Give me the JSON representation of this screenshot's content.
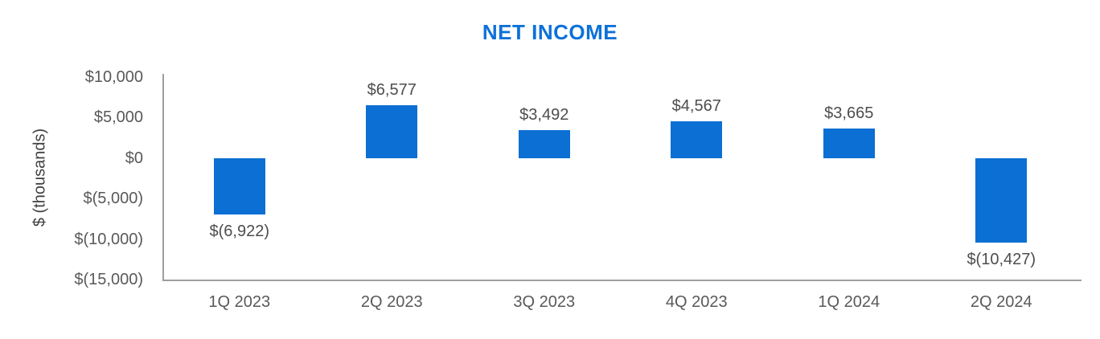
{
  "title": "NET INCOME",
  "colors": {
    "title": "#0E71D8",
    "bar": "#0B6FD3",
    "axis_line": "#9E9E9E",
    "tick_text": "#595959",
    "data_label_text": "#4d4d4d",
    "background": "#FFFFFF"
  },
  "chart_data": {
    "type": "bar",
    "title": "NET INCOME",
    "xlabel": "",
    "ylabel": "$ (thousands)",
    "categories": [
      "1Q 2023",
      "2Q 2023",
      "3Q 2023",
      "4Q 2023",
      "1Q 2024",
      "2Q 2024"
    ],
    "values": [
      -6922,
      6577,
      3492,
      4567,
      3665,
      -10427
    ],
    "data_labels": [
      "$(6,922)",
      "$6,577",
      "$3,492",
      "$4,567",
      "$3,665",
      "$(10,427)"
    ],
    "ylim": [
      -15000,
      10000
    ],
    "ytick_values": [
      10000,
      5000,
      0,
      -5000,
      -10000,
      -15000
    ],
    "ytick_labels": [
      "$10,000",
      "$5,000",
      "$0",
      "$(5,000)",
      "$(10,000)",
      "$(15,000)"
    ],
    "grid": false,
    "legend": null
  }
}
